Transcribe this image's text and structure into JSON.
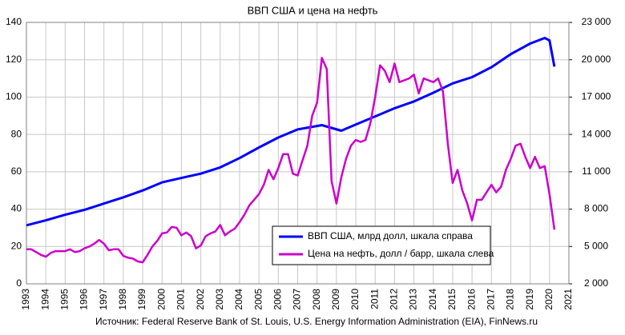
{
  "chart_data": {
    "type": "line",
    "title": "ВВП США и цена на нефть",
    "source": "Источник: Federal Reserve Bank of St. Louis, U.S. Energy Information Administration (EIA), FinNews.ru",
    "xlim": [
      1993,
      2021
    ],
    "xticks": [
      1993,
      1994,
      1995,
      1996,
      1997,
      1998,
      1999,
      2000,
      2001,
      2002,
      2003,
      2004,
      2005,
      2006,
      2007,
      2008,
      2009,
      2010,
      2011,
      2012,
      2013,
      2014,
      2015,
      2016,
      2017,
      2018,
      2019,
      2020,
      2021
    ],
    "ylim": [
      0,
      140
    ],
    "yticks": [
      0,
      20,
      40,
      60,
      80,
      100,
      120,
      140
    ],
    "y2lim": [
      2000,
      23000
    ],
    "y2ticks": [
      {
        "value": 2000,
        "label": "2 000"
      },
      {
        "value": 5000,
        "label": "5 000"
      },
      {
        "value": 8000,
        "label": "8 000"
      },
      {
        "value": 11000,
        "label": "11 000"
      },
      {
        "value": 14000,
        "label": "14 000"
      },
      {
        "value": 17000,
        "label": "17 000"
      },
      {
        "value": 20000,
        "label": "20 000"
      },
      {
        "value": 23000,
        "label": "23 000"
      }
    ],
    "grid": true,
    "legend": "center",
    "series": [
      {
        "name": "ВВП США, млрд долл, шкала справа",
        "color": "#0000ff",
        "axis": "y2",
        "x": [
          1993,
          1994,
          1995,
          1996,
          1997,
          1998,
          1999,
          2000,
          2001,
          2002,
          2003,
          2004,
          2005,
          2006,
          2007,
          2008.25,
          2009.25,
          2010,
          2011,
          2012,
          2013,
          2014,
          2015,
          2016,
          2017,
          2018,
          2019,
          2019.75,
          2020,
          2020.25
        ],
        "values": [
          6700,
          7100,
          7550,
          7950,
          8450,
          8950,
          9500,
          10150,
          10500,
          10850,
          11350,
          12100,
          12950,
          13750,
          14400,
          14750,
          14300,
          14800,
          15450,
          16100,
          16650,
          17350,
          18100,
          18600,
          19400,
          20450,
          21300,
          21750,
          21550,
          19450
        ]
      },
      {
        "name": "Цена на нефть, долл / барр, шкала слева",
        "color": "#cc00cc",
        "x": [
          1993,
          1993.25,
          1993.5,
          1993.75,
          1994,
          1994.25,
          1994.5,
          1994.75,
          1995,
          1995.25,
          1995.5,
          1995.75,
          1996,
          1996.25,
          1996.5,
          1996.75,
          1997,
          1997.25,
          1997.5,
          1997.75,
          1998,
          1998.25,
          1998.5,
          1998.75,
          1999,
          1999.25,
          1999.5,
          1999.75,
          2000,
          2000.25,
          2000.5,
          2000.75,
          2001,
          2001.25,
          2001.5,
          2001.75,
          2002,
          2002.25,
          2002.5,
          2002.75,
          2003,
          2003.25,
          2003.5,
          2003.75,
          2004,
          2004.25,
          2004.5,
          2004.75,
          2005,
          2005.25,
          2005.5,
          2005.75,
          2006,
          2006.25,
          2006.5,
          2006.75,
          2007,
          2007.25,
          2007.5,
          2007.75,
          2008,
          2008.25,
          2008.5,
          2008.75,
          2009,
          2009.25,
          2009.5,
          2009.75,
          2010,
          2010.25,
          2010.5,
          2010.75,
          2011,
          2011.25,
          2011.5,
          2011.75,
          2012,
          2012.25,
          2012.5,
          2012.75,
          2013,
          2013.25,
          2013.5,
          2013.75,
          2014,
          2014.25,
          2014.5,
          2014.75,
          2015,
          2015.25,
          2015.5,
          2015.75,
          2016,
          2016.25,
          2016.5,
          2016.75,
          2017,
          2017.25,
          2017.5,
          2017.75,
          2018,
          2018.25,
          2018.5,
          2018.75,
          2019,
          2019.25,
          2019.5,
          2019.75,
          2020,
          2020.25
        ],
        "values": [
          18.5,
          18.5,
          17,
          15.5,
          14.5,
          16.5,
          17.5,
          17.5,
          17.5,
          18.5,
          17,
          17.5,
          19,
          20,
          21.5,
          23.5,
          21.5,
          18,
          18.5,
          18.5,
          15,
          14,
          13.5,
          12,
          11.5,
          15.5,
          20,
          23,
          27,
          27.5,
          30.5,
          30,
          26,
          27.5,
          25.5,
          19,
          20.5,
          25.5,
          27,
          28,
          31.5,
          26,
          28,
          29.5,
          33,
          37,
          42,
          45,
          48,
          53,
          61,
          56,
          62,
          69.5,
          69.5,
          59,
          58,
          66,
          74,
          90,
          97,
          121,
          115,
          55,
          43,
          57,
          67,
          74,
          77,
          76,
          77,
          86,
          100,
          117,
          114,
          108,
          118,
          108,
          109,
          110,
          112,
          102,
          110,
          109,
          108,
          110,
          103,
          75,
          54,
          61,
          50,
          43,
          34,
          45,
          45,
          49,
          53,
          49,
          52,
          61,
          67,
          74,
          75,
          68,
          62,
          68,
          62,
          63,
          48,
          29
        ]
      }
    ]
  }
}
